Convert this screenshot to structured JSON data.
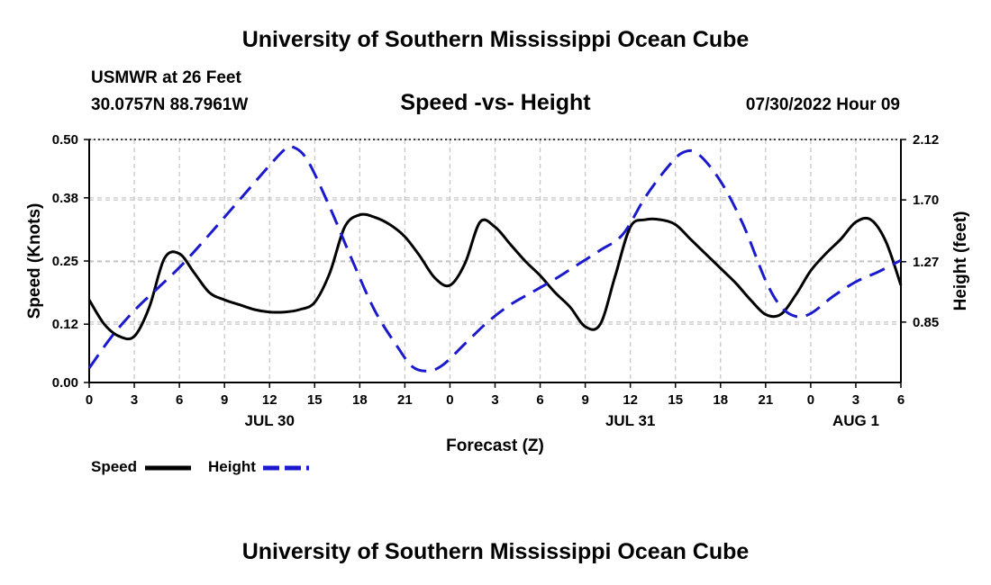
{
  "header": {
    "title": "University of Southern Mississippi Ocean Cube",
    "station": "USMWR at 26 Feet",
    "coords": "30.0757N  88.7961W",
    "subtitle": "Speed -vs- Height",
    "timestamp": "07/30/2022 Hour 09",
    "footer_title": "University of Southern Mississippi Ocean Cube"
  },
  "chart_data": {
    "type": "line",
    "title": "Speed -vs- Height",
    "xlabel": "Forecast (Z)",
    "ylabel_left": "Speed (Knots)",
    "ylabel_right": "Height (feet)",
    "x_hours": [
      0,
      3,
      6,
      9,
      12,
      15,
      18,
      21,
      24,
      27,
      30,
      33,
      36,
      39,
      42,
      45,
      48,
      51,
      54
    ],
    "x_tick_labels": [
      "0",
      "3",
      "6",
      "9",
      "12",
      "15",
      "18",
      "21",
      "0",
      "3",
      "6",
      "9",
      "12",
      "15",
      "18",
      "21",
      "0",
      "3",
      "6"
    ],
    "date_labels": [
      {
        "label": "JUL 30",
        "hour": 12
      },
      {
        "label": "JUL 31",
        "hour": 36
      },
      {
        "label": "AUG 1",
        "hour": 51
      }
    ],
    "y_left": {
      "ticks": [
        0.0,
        0.12,
        0.25,
        0.38,
        0.5
      ],
      "tick_labels": [
        "0.00",
        "0.12",
        "0.25",
        "0.38",
        "0.50"
      ],
      "range": [
        0,
        0.5
      ]
    },
    "y_right": {
      "ticks": [
        0.85,
        1.27,
        1.7,
        2.12
      ],
      "tick_labels": [
        "0.85",
        "1.27",
        "1.70",
        "2.12"
      ],
      "range": [
        0.43,
        2.12
      ]
    },
    "grid": true,
    "series": [
      {
        "name": "Speed",
        "axis": "left",
        "color": "#000000",
        "dash": "solid",
        "x": [
          0,
          1,
          2,
          3,
          4,
          5,
          6,
          7,
          8,
          9,
          10,
          11,
          12,
          13,
          14,
          15,
          16,
          17,
          18,
          19,
          20,
          21,
          22,
          23,
          24,
          25,
          26,
          27,
          28,
          29,
          30,
          31,
          32,
          33,
          34,
          35,
          36,
          37,
          38,
          39,
          40,
          41,
          42,
          43,
          44,
          45,
          46,
          47,
          48,
          49,
          50,
          51,
          52,
          53,
          54
        ],
        "values": [
          0.17,
          0.12,
          0.095,
          0.095,
          0.155,
          0.255,
          0.265,
          0.225,
          0.185,
          0.17,
          0.16,
          0.15,
          0.145,
          0.145,
          0.15,
          0.165,
          0.225,
          0.32,
          0.345,
          0.34,
          0.325,
          0.3,
          0.26,
          0.215,
          0.2,
          0.245,
          0.33,
          0.32,
          0.285,
          0.25,
          0.22,
          0.185,
          0.155,
          0.115,
          0.12,
          0.22,
          0.32,
          0.335,
          0.335,
          0.325,
          0.295,
          0.265,
          0.235,
          0.205,
          0.17,
          0.14,
          0.14,
          0.18,
          0.23,
          0.265,
          0.295,
          0.33,
          0.335,
          0.29,
          0.2
        ]
      },
      {
        "name": "Height",
        "axis": "right",
        "color": "#1a1acc",
        "dash": "dashed",
        "x": [
          0,
          1.5,
          3,
          4.5,
          6,
          7.5,
          9,
          10.5,
          12,
          13,
          13.5,
          14.5,
          16,
          17.5,
          19,
          20.5,
          21.5,
          22.5,
          23.5,
          25,
          26.5,
          28,
          29.5,
          31,
          32.5,
          34,
          35.5,
          37,
          38.5,
          39.5,
          40.5,
          42,
          43.5,
          45,
          46,
          47,
          48,
          49.5,
          51,
          52.5,
          54
        ],
        "values": [
          0.53,
          0.75,
          0.93,
          1.08,
          1.23,
          1.4,
          1.58,
          1.76,
          1.94,
          2.05,
          2.07,
          1.98,
          1.65,
          1.28,
          0.93,
          0.68,
          0.54,
          0.51,
          0.55,
          0.7,
          0.85,
          0.97,
          1.06,
          1.15,
          1.25,
          1.35,
          1.46,
          1.72,
          1.93,
          2.03,
          2.02,
          1.83,
          1.53,
          1.14,
          0.96,
          0.89,
          0.91,
          1.03,
          1.13,
          1.2,
          1.28
        ]
      }
    ]
  },
  "legend": {
    "speed_label": "Speed",
    "height_label": "Height"
  }
}
